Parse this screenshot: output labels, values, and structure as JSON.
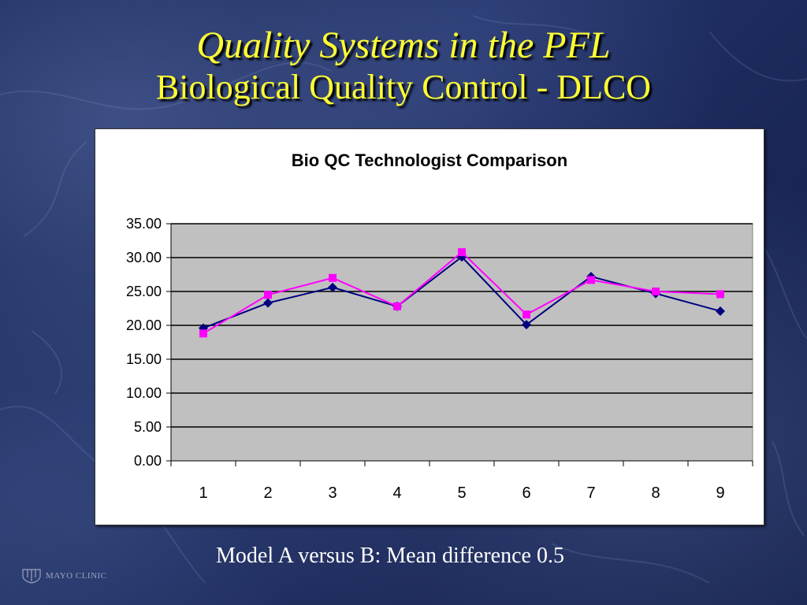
{
  "slide": {
    "title": "Quality Systems in the PFL",
    "subtitle": "Biological Quality Control - DLCO",
    "caption": "Model A versus B: Mean difference 0.5",
    "logo_text": "MAYO CLINIC"
  },
  "chart_data": {
    "type": "line",
    "title": "Bio QC Technologist Comparison",
    "xlabel": "",
    "ylabel": "",
    "categories": [
      "1",
      "2",
      "3",
      "4",
      "5",
      "6",
      "7",
      "8",
      "9"
    ],
    "y_ticks": [
      "0.00",
      "5.00",
      "10.00",
      "15.00",
      "20.00",
      "25.00",
      "30.00",
      "35.00"
    ],
    "ylim": [
      0,
      35
    ],
    "grid": true,
    "legend": "none",
    "plot_background": "#c0c0c0",
    "series": [
      {
        "color": "#000080",
        "marker": "diamond",
        "values": [
          19.6,
          23.3,
          25.6,
          22.8,
          30.1,
          20.1,
          27.2,
          24.7,
          22.1
        ]
      },
      {
        "color": "#ff00ff",
        "marker": "square",
        "values": [
          18.8,
          24.5,
          27.0,
          22.8,
          30.8,
          21.6,
          26.7,
          25.0,
          24.6
        ]
      }
    ]
  }
}
